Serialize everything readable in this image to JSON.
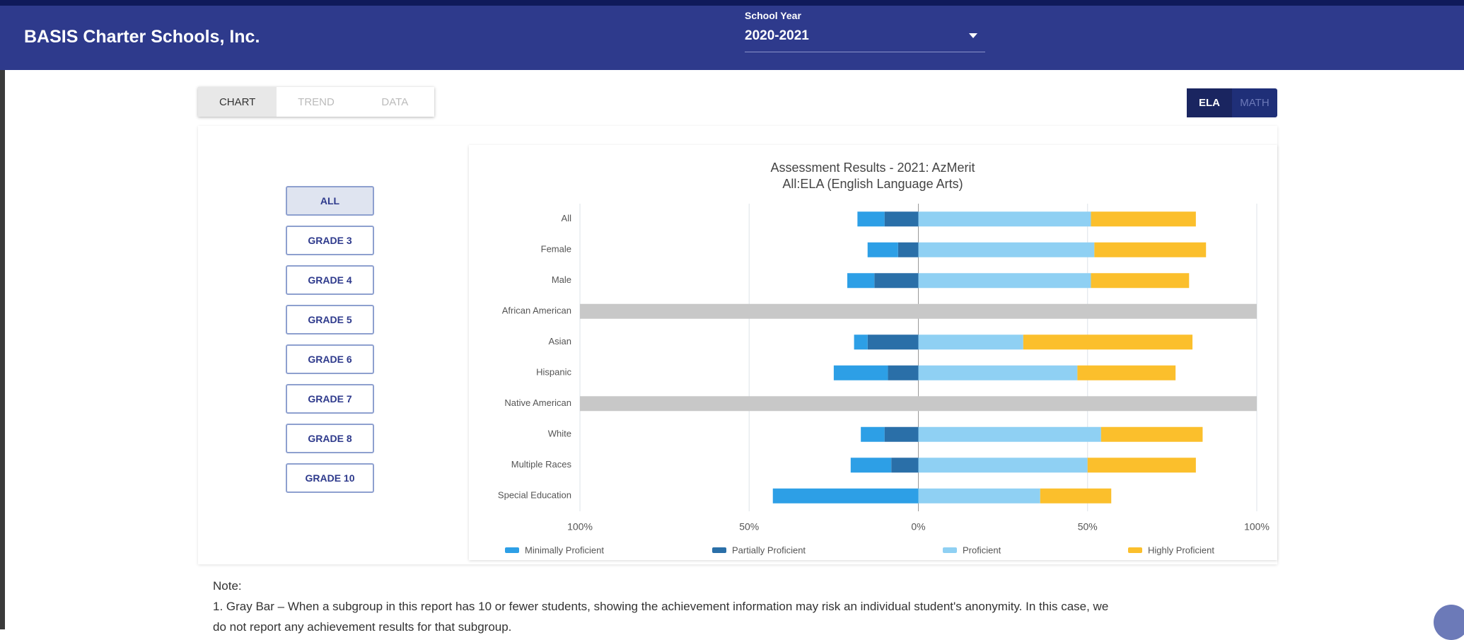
{
  "header": {
    "title": "BASIS Charter Schools, Inc.",
    "school_year_label": "School Year",
    "school_year": "2020-2021"
  },
  "tabs": [
    "CHART",
    "TREND",
    "DATA"
  ],
  "subjects": [
    "ELA",
    "MATH"
  ],
  "grades": [
    "ALL",
    "GRADE 3",
    "GRADE 4",
    "GRADE 5",
    "GRADE 6",
    "GRADE 7",
    "GRADE 8",
    "GRADE 10"
  ],
  "chart_data": {
    "type": "diverging-bar",
    "title": "Assessment Results - 2021: AzMerit",
    "subtitle": "All:ELA (English Language Arts)",
    "categories": [
      "All",
      "Female",
      "Male",
      "African American",
      "Asian",
      "Hispanic",
      "Native American",
      "White",
      "Multiple Races",
      "Special Education"
    ],
    "series": [
      {
        "name": "Minimally Proficient",
        "color": "#2d9fe6",
        "values": [
          -8,
          -9,
          -8,
          null,
          -4,
          -16,
          null,
          -7,
          -12,
          -43
        ]
      },
      {
        "name": "Partially Proficient",
        "color": "#2a6fa8",
        "values": [
          -10,
          -6,
          -13,
          null,
          -15,
          -9,
          null,
          -10,
          -8,
          0
        ]
      },
      {
        "name": "Proficient",
        "color": "#8fd0f3",
        "values": [
          51,
          52,
          51,
          null,
          31,
          47,
          null,
          54,
          50,
          36
        ]
      },
      {
        "name": "Highly Proficient",
        "color": "#fbbf2c",
        "values": [
          31,
          33,
          29,
          null,
          50,
          29,
          null,
          30,
          32,
          21
        ]
      }
    ],
    "xlim": [
      -100,
      100
    ],
    "xticks": [
      {
        "value": -100,
        "label": "100%"
      },
      {
        "value": -50,
        "label": "50%"
      },
      {
        "value": 0,
        "label": "0%"
      },
      {
        "value": 50,
        "label": "50%"
      },
      {
        "value": 100,
        "label": "100%"
      }
    ],
    "grid": true
  },
  "note": {
    "heading": "Note:",
    "lines": [
      "1. Gray Bar – When a subgroup in this report has 10 or fewer students, showing the achievement information may risk an individual student's anonymity. In this case, we",
      "do not report any achievement results for that subgroup."
    ]
  }
}
